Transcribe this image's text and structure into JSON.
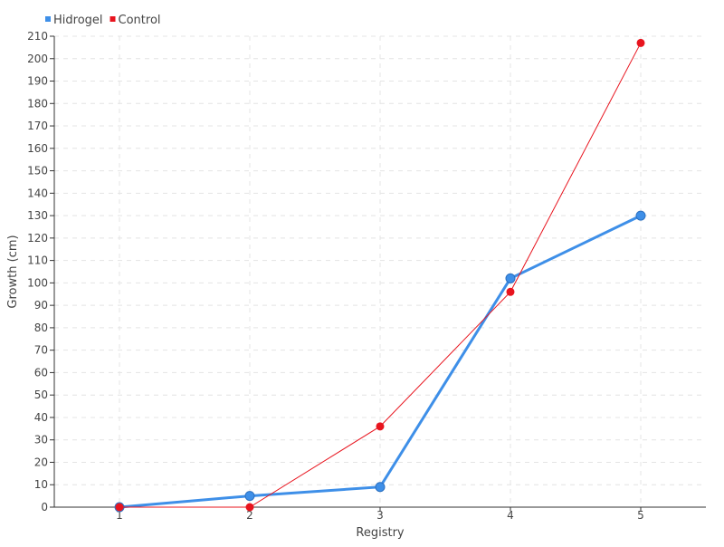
{
  "chart_data": {
    "type": "line",
    "title": "",
    "xlabel": "Registry",
    "ylabel": "Growth (cm)",
    "x": [
      1,
      2,
      3,
      4,
      5
    ],
    "xlim": [
      0.5,
      5.5
    ],
    "ylim": [
      0,
      210
    ],
    "ytick_step": 10,
    "grid": true,
    "legend": "top-left",
    "series": [
      {
        "name": "Hidrogel",
        "color": "#3e8fe8",
        "values": [
          0,
          5,
          9,
          102,
          130
        ]
      },
      {
        "name": "Control",
        "color": "#e8141e",
        "values": [
          0,
          0,
          36,
          96,
          207
        ]
      }
    ]
  }
}
